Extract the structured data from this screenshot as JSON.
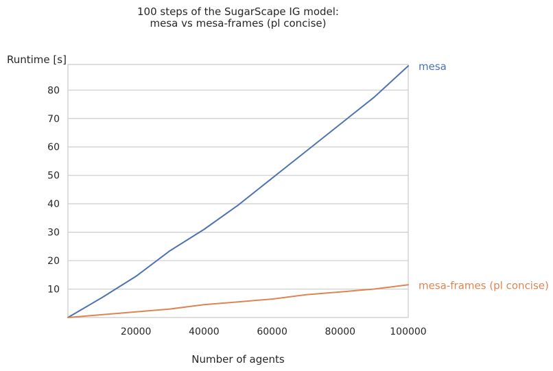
{
  "chart_data": {
    "type": "line",
    "title": "100 steps of the SugarScape IG model:",
    "subtitle": "mesa vs mesa-frames (pl concise)",
    "xlabel": "Number of agents",
    "ylabel": "Runtime [s]",
    "xlim": [
      0,
      100000
    ],
    "ylim": [
      0,
      89
    ],
    "xticks": [
      20000,
      40000,
      60000,
      80000,
      100000
    ],
    "yticks": [
      10,
      20,
      30,
      40,
      50,
      60,
      70,
      80
    ],
    "grid": "horizontal",
    "legend": "direct-labels-right",
    "x": [
      0,
      10000,
      20000,
      30000,
      40000,
      50000,
      60000,
      70000,
      80000,
      90000,
      100000
    ],
    "series": [
      {
        "name": "mesa",
        "color": "#4c72b0",
        "values": [
          0,
          7,
          14.5,
          23.5,
          31,
          39.5,
          49,
          58.5,
          68,
          77.5,
          88.5
        ]
      },
      {
        "name": "mesa-frames (pl concise)",
        "color": "#dd8452",
        "values": [
          0,
          1,
          2,
          3,
          4.5,
          5.5,
          6.5,
          8,
          9,
          10,
          11.5
        ]
      }
    ]
  }
}
